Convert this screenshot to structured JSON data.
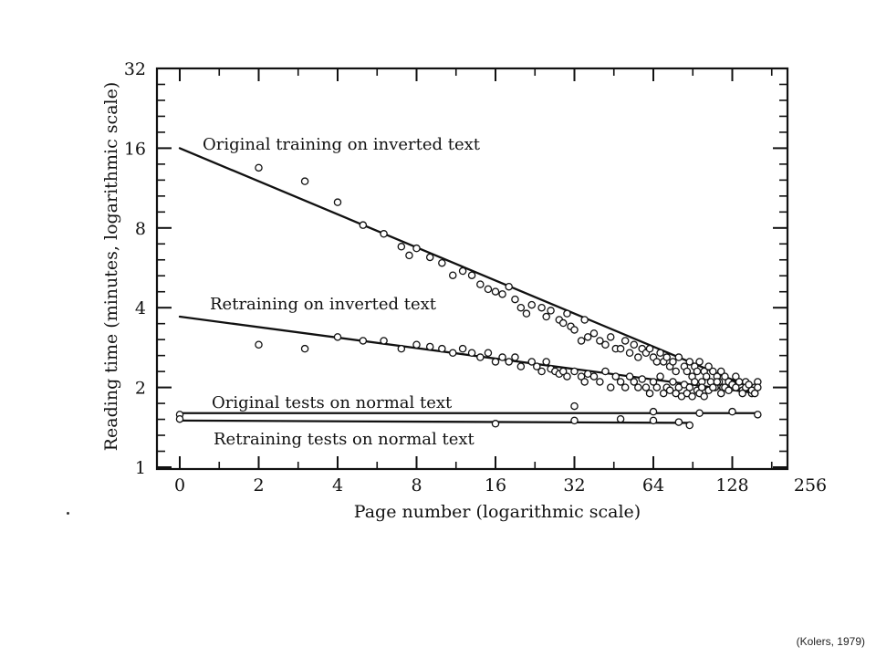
{
  "source_note": "(Kolers, 1979)",
  "chart_data": {
    "type": "scatter",
    "xlabel": "Page number (logarithmic scale)",
    "ylabel": "Reading time (minutes, logarithmic scale)",
    "x_scale": "log2",
    "y_scale": "log2",
    "xlim": [
      0,
      256
    ],
    "ylim": [
      1,
      32
    ],
    "x_ticks": [
      {
        "value": 0,
        "label": "0"
      },
      {
        "value": 2,
        "label": "2"
      },
      {
        "value": 4,
        "label": "4"
      },
      {
        "value": 8,
        "label": "8"
      },
      {
        "value": 16,
        "label": "16"
      },
      {
        "value": 32,
        "label": "32"
      },
      {
        "value": 64,
        "label": "64"
      },
      {
        "value": 128,
        "label": "128"
      },
      {
        "value": 256,
        "label": "256"
      }
    ],
    "y_ticks": [
      {
        "value": 1,
        "label": "1"
      },
      {
        "value": 2,
        "label": "2"
      },
      {
        "value": 4,
        "label": "4"
      },
      {
        "value": 8,
        "label": "8"
      },
      {
        "value": 16,
        "label": "16"
      },
      {
        "value": 32,
        "label": "32"
      }
    ],
    "series": [
      {
        "name": "Original training on inverted text",
        "line": {
          "x": [
            0,
            160
          ],
          "y": [
            16,
            1.95
          ]
        },
        "x": [
          2,
          3,
          4,
          5,
          6,
          7,
          7.5,
          8,
          9,
          10,
          11,
          12,
          13,
          14,
          15,
          16,
          17,
          18,
          19,
          20,
          21,
          22,
          24,
          25,
          26,
          28,
          29,
          30,
          31,
          32,
          34,
          35,
          36,
          38,
          40,
          42,
          44,
          46,
          48,
          50,
          52,
          54,
          56,
          58,
          60,
          62,
          64,
          66,
          68,
          70,
          72,
          74,
          76,
          78,
          80,
          84,
          86,
          88,
          90,
          92,
          94,
          96,
          98,
          100,
          102,
          104,
          106,
          108,
          110,
          112,
          114,
          116,
          118,
          120,
          124,
          128,
          132,
          136,
          140,
          144,
          148,
          152,
          156,
          160
        ],
        "y": [
          13.5,
          12.0,
          10.0,
          8.2,
          7.6,
          6.8,
          6.3,
          6.7,
          6.2,
          5.9,
          5.3,
          5.5,
          5.3,
          4.9,
          4.7,
          4.6,
          4.5,
          4.8,
          4.3,
          4.0,
          3.8,
          4.1,
          4.0,
          3.7,
          3.9,
          3.6,
          3.5,
          3.8,
          3.4,
          3.3,
          3.0,
          3.6,
          3.1,
          3.2,
          3.0,
          2.9,
          3.1,
          2.8,
          2.8,
          3.0,
          2.7,
          2.9,
          2.6,
          2.8,
          2.7,
          2.8,
          2.6,
          2.5,
          2.7,
          2.5,
          2.6,
          2.4,
          2.5,
          2.3,
          2.6,
          2.4,
          2.3,
          2.5,
          2.2,
          2.4,
          2.3,
          2.5,
          2.1,
          2.3,
          2.2,
          2.4,
          2.1,
          2.3,
          2.0,
          2.2,
          2.1,
          2.3,
          2.0,
          2.2,
          2.1,
          2.0,
          2.2,
          2.1,
          1.95,
          2.1,
          2.0,
          1.9,
          2.0,
          2.1
        ]
      },
      {
        "name": "Retraining on inverted text",
        "line": {
          "x": [
            0,
            160
          ],
          "y": [
            3.7,
            1.9
          ]
        },
        "x": [
          2,
          3,
          4,
          5,
          6,
          7,
          8,
          9,
          10,
          11,
          12,
          13,
          14,
          15,
          16,
          17,
          18,
          19,
          20,
          22,
          23,
          24,
          25,
          26,
          27,
          28,
          29,
          30,
          32,
          34,
          35,
          36,
          38,
          40,
          42,
          44,
          46,
          48,
          50,
          52,
          54,
          56,
          58,
          60,
          62,
          64,
          66,
          68,
          70,
          72,
          74,
          76,
          78,
          80,
          82,
          84,
          86,
          88,
          90,
          92,
          94,
          96,
          98,
          100,
          104,
          108,
          112,
          116,
          120,
          124,
          128,
          132,
          136,
          140,
          144,
          148,
          152,
          156,
          160
        ],
        "y": [
          2.9,
          2.8,
          3.1,
          3.0,
          3.0,
          2.8,
          2.9,
          2.85,
          2.8,
          2.7,
          2.8,
          2.7,
          2.6,
          2.7,
          2.5,
          2.6,
          2.5,
          2.6,
          2.4,
          2.5,
          2.4,
          2.3,
          2.5,
          2.35,
          2.3,
          2.25,
          2.3,
          2.2,
          2.3,
          2.2,
          2.1,
          2.25,
          2.2,
          2.1,
          2.3,
          2.0,
          2.2,
          2.1,
          2.0,
          2.2,
          2.1,
          2.0,
          2.15,
          2.0,
          1.9,
          2.1,
          2.0,
          2.2,
          1.9,
          2.0,
          1.95,
          2.1,
          1.9,
          2.0,
          1.85,
          2.05,
          1.9,
          2.0,
          1.85,
          2.1,
          1.95,
          1.9,
          2.0,
          1.85,
          1.95,
          2.0,
          2.1,
          1.9,
          2.0,
          1.95,
          2.05,
          2.0,
          2.1,
          1.9,
          2.0,
          2.05,
          1.95,
          1.9,
          2.0
        ]
      },
      {
        "name": "Original tests on normal text",
        "line": {
          "x": [
            0,
            160
          ],
          "y": [
            1.6,
            1.6
          ]
        },
        "x": [
          0,
          32,
          64,
          96,
          128,
          160
        ],
        "y": [
          1.58,
          1.7,
          1.62,
          1.6,
          1.62,
          1.58
        ]
      },
      {
        "name": "Retraining tests on normal text",
        "line": {
          "x": [
            0,
            88
          ],
          "y": [
            1.5,
            1.47
          ]
        },
        "x": [
          0,
          16,
          32,
          48,
          64,
          80,
          88
        ],
        "y": [
          1.52,
          1.46,
          1.5,
          1.52,
          1.5,
          1.48,
          1.44
        ]
      }
    ]
  }
}
